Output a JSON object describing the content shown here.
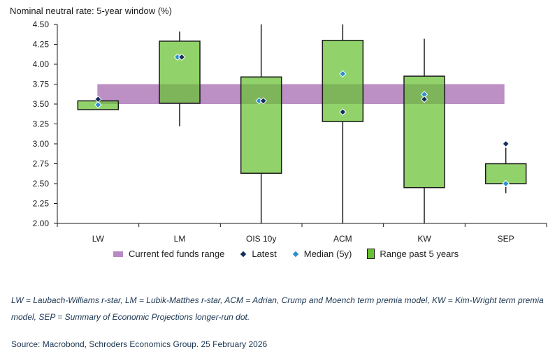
{
  "chart_data": {
    "type": "boxplot",
    "title": "Nominal neutral rate: 5-year window (%)",
    "categories": [
      "LW",
      "LM",
      "OIS 10y",
      "ACM",
      "KW",
      "SEP"
    ],
    "ylim": [
      2.0,
      4.5
    ],
    "yticks": [
      "2.00",
      "2.25",
      "2.50",
      "2.75",
      "3.00",
      "3.25",
      "3.50",
      "3.75",
      "4.00",
      "4.25",
      "4.50"
    ],
    "current_fed_funds_range": [
      3.5,
      3.75
    ],
    "series": [
      {
        "name": "LW",
        "whisker_low": 3.43,
        "box_low": 3.43,
        "box_high": 3.54,
        "whisker_high": 3.54,
        "latest": 3.56,
        "median": 3.49
      },
      {
        "name": "LM",
        "whisker_low": 3.22,
        "box_low": 3.51,
        "box_high": 4.29,
        "whisker_high": 4.41,
        "latest": 4.09,
        "median": 4.09
      },
      {
        "name": "OIS 10y",
        "whisker_low": 2.0,
        "box_low": 2.63,
        "box_high": 3.84,
        "whisker_high": 4.5,
        "latest": 3.54,
        "median": 3.54
      },
      {
        "name": "ACM",
        "whisker_low": 2.0,
        "box_low": 3.28,
        "box_high": 4.3,
        "whisker_high": 4.5,
        "latest": 3.4,
        "median": 3.88
      },
      {
        "name": "KW",
        "whisker_low": 2.0,
        "box_low": 2.45,
        "box_high": 3.85,
        "whisker_high": 4.32,
        "latest": 3.56,
        "median": 3.62
      },
      {
        "name": "SEP",
        "whisker_low": 2.38,
        "box_low": 2.5,
        "box_high": 2.75,
        "whisker_high": 2.95,
        "latest": 3.0,
        "median": 2.5
      }
    ],
    "legend": [
      {
        "label": "Current fed funds range",
        "kind": "range"
      },
      {
        "label": "Latest",
        "kind": "latest"
      },
      {
        "label": "Median (5y)",
        "kind": "median"
      },
      {
        "label": "Range past 5 years",
        "kind": "box"
      }
    ],
    "colors": {
      "fed_range": "#b889c2",
      "box": "#66c231",
      "latest": "#12305a",
      "median": "#2a8fcf",
      "axis": "#1a1a1a"
    }
  },
  "footnote": "LW = Laubach-Williams r-star, LM = Lubik-Matthes r-star, ACM = Adrian, Crump and Moench term premia model, KW = Kim-Wright term premia model, SEP = Summary of Economic Projections longer-run dot.",
  "source": "Source: Macrobond, Schroders Economics Group. 25 February 2026"
}
